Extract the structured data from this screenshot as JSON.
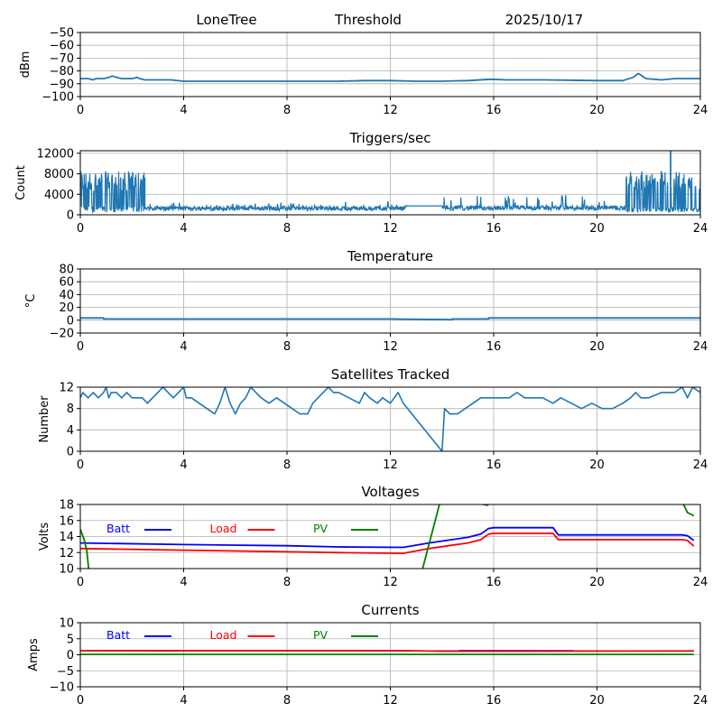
{
  "header": {
    "station": "LoneTree",
    "mode": "Threshold",
    "date": "2025/10/17"
  },
  "chart_data": [
    {
      "id": "signal",
      "type": "line",
      "title": "",
      "xlabel": "",
      "ylabel": "dBm",
      "xlim": [
        0,
        24
      ],
      "ylim": [
        -100,
        -50
      ],
      "xticks": [
        0,
        4,
        8,
        12,
        16,
        20,
        24
      ],
      "yticks": [
        -50,
        -60,
        -70,
        -80,
        -90,
        -100
      ],
      "ytick_labels": [
        "−50",
        "−60",
        "−70",
        "−80",
        "−90",
        "−100"
      ],
      "grid": true,
      "series": [
        {
          "name": "dBm",
          "color": "#1f77b4",
          "x": [
            0,
            0.3,
            0.5,
            0.6,
            0.9,
            1.1,
            1.25,
            1.4,
            1.6,
            2.0,
            2.2,
            2.3,
            2.5,
            3.0,
            3.5,
            4.0,
            6.0,
            8.0,
            10.0,
            11.0,
            12.0,
            13.0,
            14.0,
            15.0,
            15.9,
            16.5,
            18.0,
            20.0,
            21.0,
            21.4,
            21.6,
            21.9,
            22.5,
            23.0,
            24.0
          ],
          "y": [
            -86,
            -86,
            -87,
            -86,
            -86,
            -85,
            -84,
            -85,
            -86,
            -86,
            -85,
            -86,
            -87,
            -87,
            -87,
            -88,
            -88,
            -88,
            -88,
            -87.5,
            -87.5,
            -88,
            -88,
            -87.5,
            -86.5,
            -87,
            -87,
            -87.5,
            -87.5,
            -85,
            -82,
            -86,
            -87,
            -86,
            -86
          ]
        }
      ]
    },
    {
      "id": "triggers",
      "type": "line",
      "title": "Triggers/sec",
      "xlabel": "",
      "ylabel": "Count",
      "xlim": [
        0,
        24
      ],
      "ylim": [
        0,
        12500
      ],
      "xticks": [
        0,
        4,
        8,
        12,
        16,
        20,
        24
      ],
      "yticks": [
        0,
        4000,
        8000,
        12000
      ],
      "ytick_labels": [
        "0",
        "4000",
        "8000",
        "12000"
      ],
      "grid": true,
      "series": [
        {
          "name": "Count",
          "color": "#1f77b4",
          "segments": [
            {
              "x_start": 0,
              "x_end": 2.5,
              "low": 500,
              "high": 8500,
              "base": 1200
            },
            {
              "x_start": 2.5,
              "x_end": 12.6,
              "low": 700,
              "high": 2400,
              "base": 1400
            },
            {
              "x_start": 12.6,
              "x_end": 14.0,
              "low": 1700,
              "high": 1800,
              "base": 1750
            },
            {
              "x_start": 14.0,
              "x_end": 21.1,
              "low": 700,
              "high": 4000,
              "base": 1500
            },
            {
              "x_start": 21.1,
              "x_end": 24.0,
              "low": 0,
              "high": 8500,
              "base": 1000
            }
          ],
          "peak": {
            "x": 22.85,
            "y": 12400
          }
        }
      ]
    },
    {
      "id": "temperature",
      "type": "line",
      "title": "Temperature",
      "xlabel": "",
      "ylabel": "°C",
      "xlim": [
        0,
        24
      ],
      "ylim": [
        -20,
        80
      ],
      "xticks": [
        0,
        4,
        8,
        12,
        16,
        20,
        24
      ],
      "yticks": [
        -20,
        0,
        20,
        40,
        60,
        80
      ],
      "ytick_labels": [
        "−20",
        "0",
        "20",
        "40",
        "60",
        "80"
      ],
      "grid": true,
      "series": [
        {
          "name": "Temp",
          "color": "#1f77b4",
          "x": [
            0,
            0.9,
            0.9,
            12.0,
            12.6,
            14.4,
            14.4,
            15.8,
            15.8,
            24.0
          ],
          "y": [
            3.5,
            3.5,
            2.0,
            2.0,
            1.5,
            0.8,
            2.0,
            2.0,
            3.5,
            3.5
          ]
        }
      ]
    },
    {
      "id": "satellites",
      "type": "line",
      "title": "Satellites Tracked",
      "xlabel": "",
      "ylabel": "Number",
      "xlim": [
        0,
        24
      ],
      "ylim": [
        0,
        12
      ],
      "xticks": [
        0,
        4,
        8,
        12,
        16,
        20,
        24
      ],
      "yticks": [
        0,
        4,
        8,
        12
      ],
      "ytick_labels": [
        "0",
        "4",
        "8",
        "12"
      ],
      "grid": true,
      "series": [
        {
          "name": "Sats",
          "color": "#1f77b4",
          "x": [
            0,
            0.1,
            0.3,
            0.5,
            0.7,
            0.9,
            1.0,
            1.1,
            1.2,
            1.4,
            1.6,
            1.8,
            2.0,
            2.4,
            2.6,
            2.8,
            3.0,
            3.2,
            3.4,
            3.6,
            3.8,
            4.0,
            4.1,
            4.3,
            4.6,
            4.9,
            5.2,
            5.4,
            5.6,
            5.8,
            6.0,
            6.2,
            6.4,
            6.6,
            6.8,
            7.0,
            7.3,
            7.6,
            7.9,
            8.2,
            8.5,
            8.8,
            9.0,
            9.2,
            9.4,
            9.6,
            9.8,
            10.0,
            10.4,
            10.8,
            11.0,
            11.2,
            11.5,
            11.7,
            12.0,
            12.3,
            12.5,
            14.0,
            14.1,
            14.3,
            14.6,
            14.9,
            15.2,
            15.5,
            15.8,
            16.2,
            16.6,
            16.9,
            17.2,
            17.5,
            17.9,
            18.3,
            18.6,
            19.0,
            19.4,
            19.8,
            20.2,
            20.6,
            21.0,
            21.3,
            21.5,
            21.7,
            22.0,
            22.5,
            23.0,
            23.3,
            23.5,
            23.7,
            24.0
          ],
          "y": [
            10,
            11,
            10,
            11,
            10,
            11,
            12,
            10,
            11,
            11,
            10,
            11,
            10,
            10,
            9,
            10,
            11,
            12,
            11,
            10,
            11,
            12,
            10,
            10,
            9,
            8,
            7,
            9,
            12,
            9,
            7,
            9,
            10,
            12,
            11,
            10,
            9,
            10,
            9,
            8,
            7,
            7,
            9,
            10,
            11,
            12,
            11,
            11,
            10,
            9,
            11,
            10,
            9,
            10,
            9,
            11,
            9,
            0,
            8,
            7,
            7,
            8,
            9,
            10,
            10,
            10,
            10,
            11,
            10,
            10,
            10,
            9,
            10,
            9,
            8,
            9,
            8,
            8,
            9,
            10,
            11,
            10,
            10,
            11,
            11,
            12,
            10,
            12,
            11
          ]
        }
      ]
    },
    {
      "id": "voltages",
      "type": "line",
      "title": "Voltages",
      "xlabel": "",
      "ylabel": "Volts",
      "xlim": [
        0,
        24
      ],
      "ylim": [
        10,
        18
      ],
      "xticks": [
        0,
        4,
        8,
        12,
        16,
        20,
        24
      ],
      "yticks": [
        10,
        12,
        14,
        16,
        18
      ],
      "ytick_labels": [
        "10",
        "12",
        "14",
        "16",
        "18"
      ],
      "grid": true,
      "legend": {
        "placement": "top-left-inline",
        "entries": [
          {
            "label": "Batt",
            "color": "#0000ff"
          },
          {
            "label": "Load",
            "color": "#ff0000"
          },
          {
            "label": "PV",
            "color": "#008000"
          }
        ]
      },
      "series": [
        {
          "name": "Batt",
          "color": "#0000ff",
          "x": [
            0,
            4,
            8,
            10,
            12.5,
            13.5,
            15.0,
            15.5,
            15.8,
            16.0,
            18.3,
            18.5,
            23.3,
            23.5,
            23.75
          ],
          "y": [
            13.2,
            13.0,
            12.85,
            12.7,
            12.65,
            13.2,
            13.9,
            14.3,
            15.0,
            15.1,
            15.1,
            14.2,
            14.2,
            14.1,
            13.5
          ]
        },
        {
          "name": "Load",
          "color": "#ff0000",
          "x": [
            0,
            4,
            8,
            10,
            12.5,
            13.5,
            15.0,
            15.5,
            15.8,
            16.0,
            18.3,
            18.5,
            23.3,
            23.5,
            23.75
          ],
          "y": [
            12.5,
            12.3,
            12.1,
            12.0,
            11.9,
            12.5,
            13.2,
            13.6,
            14.3,
            14.4,
            14.4,
            13.6,
            13.6,
            13.5,
            12.8
          ]
        },
        {
          "name": "PV",
          "color": "#008000",
          "segments": [
            {
              "x": [
                0,
                0.15,
                0.25,
                0.32
              ],
              "y": [
                14.9,
                13.6,
                12.2,
                10.0
              ]
            },
            {
              "x": [
                13.25,
                13.9
              ],
              "y": [
                10.0,
                18.0
              ]
            },
            {
              "x": [
                15.6,
                15.8
              ],
              "y": [
                18.0,
                17.9
              ]
            },
            {
              "x": [
                23.35,
                23.5,
                23.75
              ],
              "y": [
                18.0,
                17.0,
                16.6
              ]
            }
          ]
        }
      ]
    },
    {
      "id": "currents",
      "type": "line",
      "title": "Currents",
      "xlabel": "",
      "ylabel": "Amps",
      "xlim": [
        0,
        24
      ],
      "ylim": [
        -10,
        10
      ],
      "xticks": [
        0,
        4,
        8,
        12,
        16,
        20,
        24
      ],
      "yticks": [
        -10,
        -5,
        0,
        5,
        10
      ],
      "ytick_labels": [
        "−10",
        "−5",
        "0",
        "5",
        "10"
      ],
      "grid": true,
      "legend": {
        "placement": "top-left-inline",
        "entries": [
          {
            "label": "Batt",
            "color": "#0000ff"
          },
          {
            "label": "Load",
            "color": "#ff0000"
          },
          {
            "label": "PV",
            "color": "#008000"
          }
        ]
      },
      "series": [
        {
          "name": "Batt",
          "color": "#0000ff",
          "x": [
            0,
            23.75
          ],
          "y": [
            1.3,
            1.2
          ]
        },
        {
          "name": "Load",
          "color": "#ff0000",
          "x": [
            0,
            3.5,
            4,
            12.5,
            14,
            18,
            23.75
          ],
          "y": [
            1.3,
            1.2,
            1.3,
            1.3,
            1.1,
            1.1,
            1.2
          ]
        },
        {
          "name": "PV",
          "color": "#008000",
          "x": [
            0,
            23.75
          ],
          "y": [
            0.1,
            0.1
          ]
        }
      ]
    }
  ]
}
